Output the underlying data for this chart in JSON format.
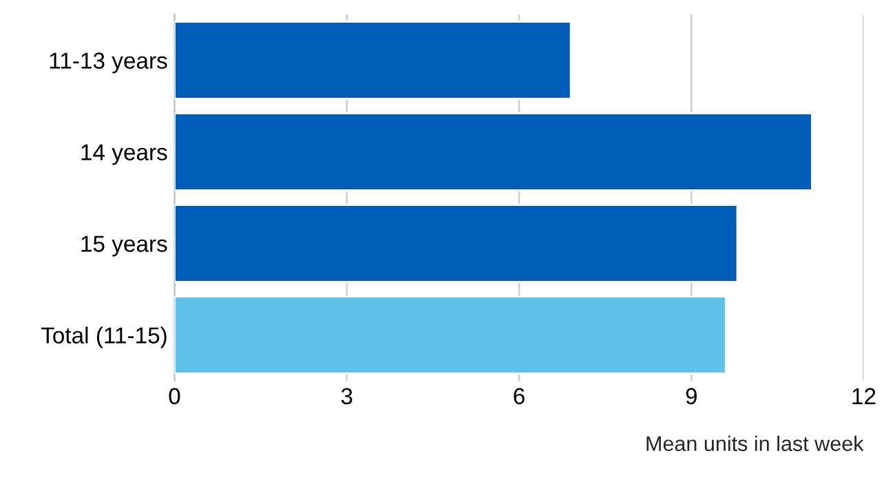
{
  "chart_data": {
    "type": "bar",
    "orientation": "horizontal",
    "categories": [
      "11-13 years",
      "14 years",
      "15 years",
      "Total (11-15)"
    ],
    "values": [
      6.9,
      11.1,
      9.8,
      9.6
    ],
    "colors": [
      "#005eb8",
      "#005eb8",
      "#005eb8",
      "#5ec1ea"
    ],
    "xlim": [
      0,
      12
    ],
    "xticks": [
      0,
      3,
      6,
      9,
      12
    ],
    "xlabel": "Mean units in last week",
    "grid": "x",
    "legend": false
  }
}
